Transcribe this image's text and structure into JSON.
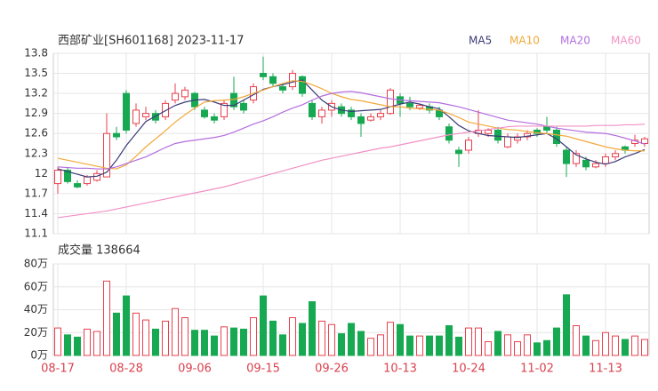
{
  "chart_data": [
    {
      "type": "candlestick",
      "title": "西部矿业[SH601168] 2023-11-17",
      "up_color": "#e8414e",
      "down_color": "#16a951",
      "ylim": [
        11.1,
        13.8
      ],
      "yticks": [
        11.1,
        11.4,
        11.7,
        12,
        12.3,
        12.6,
        12.9,
        13.2,
        13.5,
        13.8
      ],
      "grid": true,
      "open": [
        11.85,
        12.05,
        11.85,
        11.85,
        11.9,
        11.95,
        12.6,
        13.2,
        12.75,
        12.85,
        12.9,
        12.85,
        13.1,
        13.15,
        13.2,
        12.95,
        12.85,
        12.85,
        13.2,
        13.05,
        13.1,
        13.5,
        13.45,
        13.3,
        13.3,
        13.45,
        13.05,
        12.85,
        12.95,
        13.0,
        12.95,
        12.85,
        12.8,
        12.85,
        12.9,
        13.15,
        13.05,
        12.98,
        13.0,
        12.95,
        12.7,
        12.35,
        12.35,
        12.6,
        12.6,
        12.65,
        12.4,
        12.5,
        12.55,
        12.65,
        12.7,
        12.65,
        12.35,
        12.15,
        12.2,
        12.1,
        12.15,
        12.25,
        12.4,
        12.45,
        12.45
      ],
      "high": [
        12.1,
        12.1,
        11.9,
        11.98,
        12.05,
        12.9,
        12.7,
        13.25,
        13.05,
        13.0,
        12.95,
        13.1,
        13.35,
        13.3,
        13.22,
        13.0,
        12.9,
        13.1,
        13.45,
        13.1,
        13.35,
        13.75,
        13.5,
        13.35,
        13.55,
        13.47,
        13.1,
        13.0,
        13.1,
        13.05,
        13.0,
        12.9,
        12.9,
        12.95,
        13.28,
        13.2,
        13.15,
        13.05,
        13.05,
        13.0,
        12.75,
        12.4,
        12.55,
        12.95,
        12.68,
        12.7,
        12.6,
        12.6,
        12.65,
        12.68,
        12.85,
        12.7,
        12.4,
        12.35,
        12.25,
        12.2,
        12.3,
        12.35,
        12.42,
        12.58,
        12.55
      ],
      "low": [
        11.7,
        11.85,
        11.78,
        11.82,
        11.88,
        11.95,
        12.5,
        12.6,
        12.7,
        12.8,
        12.75,
        12.8,
        13.05,
        13.1,
        12.95,
        12.82,
        12.75,
        12.8,
        12.95,
        12.9,
        13.05,
        13.4,
        13.3,
        13.2,
        13.25,
        13.15,
        12.8,
        12.75,
        12.85,
        12.85,
        12.8,
        12.55,
        12.78,
        12.8,
        12.88,
        12.85,
        12.95,
        12.95,
        12.9,
        12.8,
        12.45,
        12.1,
        12.3,
        12.55,
        12.55,
        12.45,
        12.38,
        12.45,
        12.5,
        12.55,
        12.6,
        12.4,
        11.95,
        12.1,
        12.05,
        12.08,
        12.1,
        12.2,
        12.3,
        12.4,
        12.4
      ],
      "close": [
        12.05,
        11.88,
        11.8,
        11.95,
        12.0,
        12.6,
        12.55,
        12.65,
        12.95,
        12.9,
        12.8,
        13.05,
        13.2,
        13.25,
        13.0,
        12.85,
        12.8,
        13.05,
        13.0,
        12.95,
        13.3,
        13.45,
        13.35,
        13.25,
        13.5,
        13.2,
        12.85,
        12.95,
        13.05,
        12.9,
        12.85,
        12.75,
        12.85,
        12.9,
        13.25,
        13.05,
        13.0,
        13.02,
        12.95,
        12.85,
        12.5,
        12.3,
        12.5,
        12.65,
        12.65,
        12.5,
        12.55,
        12.55,
        12.6,
        12.6,
        12.65,
        12.45,
        12.15,
        12.3,
        12.1,
        12.15,
        12.25,
        12.3,
        12.35,
        12.5,
        12.52
      ],
      "series": [
        {
          "name": "MA5",
          "color": "#3b3b78",
          "values": [
            12.07,
            12.03,
            11.99,
            11.95,
            11.96,
            12.02,
            12.2,
            12.42,
            12.6,
            12.78,
            12.86,
            12.94,
            13.02,
            13.07,
            13.1,
            13.11,
            13.07,
            13.02,
            13.02,
            13.1,
            13.18,
            13.26,
            13.3,
            13.33,
            13.37,
            13.4,
            13.25,
            13.1,
            13.0,
            12.95,
            12.93,
            12.94,
            12.95,
            12.96,
            13.0,
            13.04,
            13.07,
            13.04,
            13.0,
            12.97,
            12.85,
            12.72,
            12.64,
            12.6,
            12.57,
            12.56,
            12.55,
            12.54,
            12.56,
            12.58,
            12.6,
            12.52,
            12.4,
            12.28,
            12.22,
            12.17,
            12.14,
            12.18,
            12.25,
            12.3,
            12.36
          ]
        },
        {
          "name": "MA10",
          "color": "#f2a93b",
          "values": [
            12.23,
            12.2,
            12.17,
            12.14,
            12.11,
            12.08,
            12.07,
            12.13,
            12.26,
            12.4,
            12.52,
            12.64,
            12.77,
            12.88,
            12.98,
            13.07,
            13.09,
            13.1,
            13.11,
            13.15,
            13.2,
            13.25,
            13.3,
            13.35,
            13.39,
            13.38,
            13.33,
            13.27,
            13.2,
            13.15,
            13.11,
            13.09,
            13.06,
            13.03,
            13.0,
            13.0,
            12.98,
            12.97,
            12.96,
            12.95,
            12.9,
            12.84,
            12.77,
            12.74,
            12.71,
            12.68,
            12.66,
            12.65,
            12.63,
            12.61,
            12.6,
            12.58,
            12.56,
            12.52,
            12.48,
            12.44,
            12.4,
            12.37,
            12.35,
            12.34,
            12.34
          ]
        },
        {
          "name": "MA20",
          "color": "#b36ee0",
          "values": [
            12.1,
            12.09,
            12.08,
            12.08,
            12.07,
            12.07,
            12.1,
            12.15,
            12.2,
            12.25,
            12.32,
            12.39,
            12.45,
            12.48,
            12.5,
            12.52,
            12.54,
            12.57,
            12.62,
            12.68,
            12.74,
            12.79,
            12.85,
            12.92,
            12.98,
            13.03,
            13.1,
            13.16,
            13.2,
            13.22,
            13.23,
            13.21,
            13.18,
            13.15,
            13.12,
            13.1,
            13.09,
            13.08,
            13.07,
            13.06,
            13.03,
            13.0,
            12.96,
            12.92,
            12.88,
            12.84,
            12.8,
            12.78,
            12.76,
            12.74,
            12.71,
            12.68,
            12.66,
            12.64,
            12.62,
            12.61,
            12.6,
            12.57,
            12.53,
            12.49,
            12.44
          ]
        },
        {
          "name": "MA60",
          "color": "#f291c4",
          "values": [
            11.34,
            11.36,
            11.38,
            11.4,
            11.42,
            11.44,
            11.47,
            11.5,
            11.53,
            11.56,
            11.59,
            11.62,
            11.65,
            11.68,
            11.71,
            11.74,
            11.77,
            11.8,
            11.84,
            11.88,
            11.92,
            11.96,
            12.0,
            12.04,
            12.08,
            12.12,
            12.16,
            12.2,
            12.23,
            12.26,
            12.29,
            12.32,
            12.35,
            12.38,
            12.4,
            12.43,
            12.46,
            12.49,
            12.52,
            12.55,
            12.58,
            12.6,
            12.62,
            12.64,
            12.66,
            12.68,
            12.7,
            12.71,
            12.71,
            12.71,
            12.71,
            12.71,
            12.71,
            12.71,
            12.71,
            12.72,
            12.72,
            12.72,
            12.73,
            12.73,
            12.74
          ]
        }
      ]
    },
    {
      "type": "bar",
      "title": "成交量 138664",
      "ylim": [
        0,
        80
      ],
      "yticks": [
        {
          "value": 0,
          "label": "0万"
        },
        {
          "value": 20,
          "label": "20万"
        },
        {
          "value": 40,
          "label": "40万"
        },
        {
          "value": 60,
          "label": "60万"
        },
        {
          "value": 80,
          "label": "80万"
        }
      ],
      "grid": true,
      "categories": [
        "08-17",
        null,
        null,
        null,
        null,
        null,
        null,
        "08-28",
        null,
        null,
        null,
        null,
        null,
        null,
        "09-06",
        null,
        null,
        null,
        null,
        null,
        null,
        "09-15",
        null,
        null,
        null,
        null,
        null,
        null,
        "09-26",
        null,
        null,
        null,
        null,
        null,
        null,
        "10-13",
        null,
        null,
        null,
        null,
        null,
        null,
        "10-24",
        null,
        null,
        null,
        null,
        null,
        null,
        "11-02",
        null,
        null,
        null,
        null,
        null,
        null,
        "11-13",
        null,
        null,
        null,
        null
      ],
      "values": [
        24,
        18,
        16,
        23,
        21,
        65,
        37,
        52,
        37,
        31,
        23,
        30,
        41,
        33,
        22,
        22,
        17,
        25,
        24,
        23,
        33,
        52,
        30,
        18,
        33,
        28,
        47,
        30,
        27,
        19,
        28,
        21,
        15,
        18,
        29,
        27,
        17,
        17,
        17,
        17,
        26,
        16,
        24,
        24,
        12,
        21,
        18,
        12,
        18,
        11,
        13,
        24,
        53,
        26,
        17,
        13,
        20,
        17,
        14,
        17,
        14
      ]
    }
  ]
}
